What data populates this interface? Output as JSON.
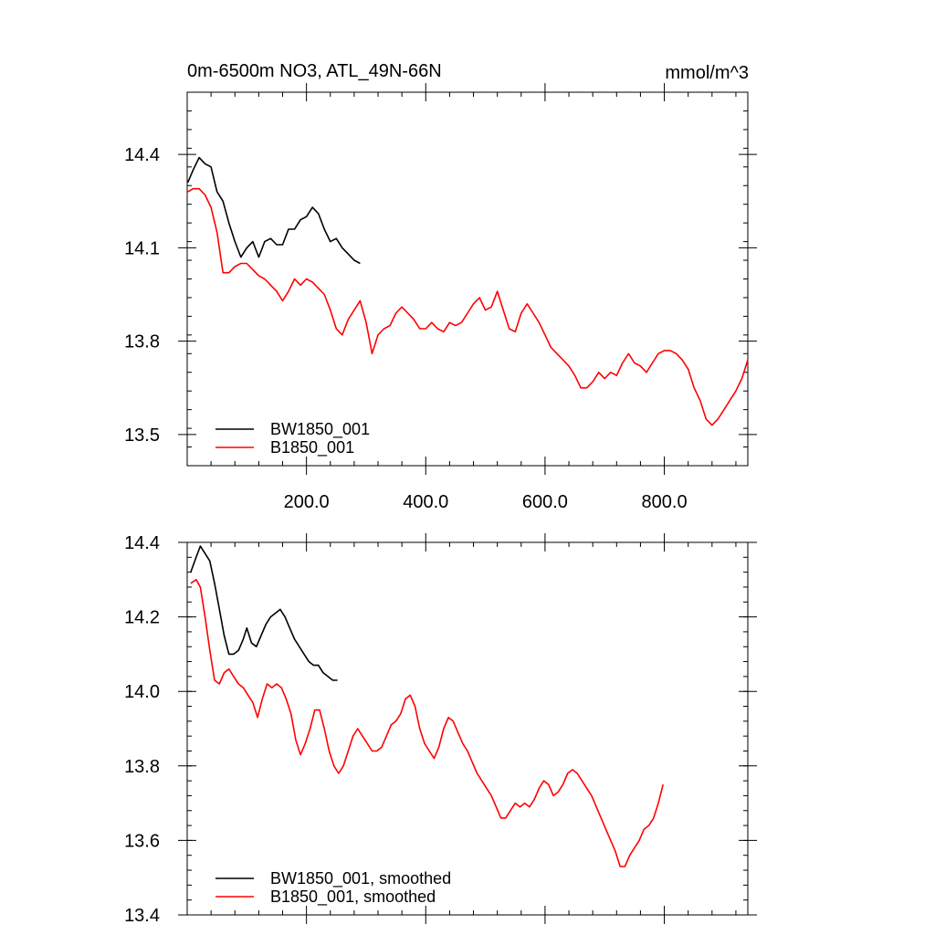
{
  "colors": {
    "BW1850_001": "#000000",
    "B1850_001": "#ff0000"
  },
  "chart_data": [
    {
      "type": "line",
      "title": "0m-6500m NO3, ATL_49N-66N",
      "unit_label": "mmol/m^3",
      "xlim": [
        0,
        940
      ],
      "ylim": [
        13.4,
        14.6
      ],
      "x_ticks": [
        200,
        400,
        600,
        800
      ],
      "x_tick_labels": [
        "200.0",
        "400.0",
        "600.0",
        "800.0"
      ],
      "y_ticks": [
        13.5,
        13.8,
        14.1,
        14.4
      ],
      "y_tick_labels": [
        "13.5",
        "13.8",
        "14.1",
        "14.4"
      ],
      "legend": "bottom-left",
      "series": [
        {
          "name": "BW1850_001",
          "color": "#000000",
          "points": [
            [
              1,
              14.31
            ],
            [
              10,
              14.35
            ],
            [
              20,
              14.39
            ],
            [
              30,
              14.37
            ],
            [
              40,
              14.36
            ],
            [
              50,
              14.28
            ],
            [
              60,
              14.25
            ],
            [
              70,
              14.18
            ],
            [
              80,
              14.12
            ],
            [
              90,
              14.07
            ],
            [
              100,
              14.1
            ],
            [
              110,
              14.12
            ],
            [
              120,
              14.07
            ],
            [
              130,
              14.12
            ],
            [
              140,
              14.13
            ],
            [
              150,
              14.11
            ],
            [
              160,
              14.11
            ],
            [
              170,
              14.16
            ],
            [
              180,
              14.16
            ],
            [
              190,
              14.19
            ],
            [
              200,
              14.2
            ],
            [
              210,
              14.23
            ],
            [
              220,
              14.21
            ],
            [
              230,
              14.16
            ],
            [
              240,
              14.12
            ],
            [
              250,
              14.13
            ],
            [
              260,
              14.1
            ],
            [
              270,
              14.08
            ],
            [
              280,
              14.06
            ],
            [
              290,
              14.05
            ]
          ]
        },
        {
          "name": "B1850_001",
          "color": "#ff0000",
          "points": [
            [
              1,
              14.28
            ],
            [
              10,
              14.29
            ],
            [
              20,
              14.29
            ],
            [
              30,
              14.27
            ],
            [
              40,
              14.23
            ],
            [
              50,
              14.15
            ],
            [
              60,
              14.02
            ],
            [
              70,
              14.02
            ],
            [
              80,
              14.04
            ],
            [
              90,
              14.05
            ],
            [
              100,
              14.05
            ],
            [
              110,
              14.03
            ],
            [
              120,
              14.01
            ],
            [
              130,
              14.0
            ],
            [
              140,
              13.98
            ],
            [
              150,
              13.96
            ],
            [
              160,
              13.93
            ],
            [
              170,
              13.96
            ],
            [
              180,
              14.0
            ],
            [
              190,
              13.98
            ],
            [
              200,
              14.0
            ],
            [
              210,
              13.99
            ],
            [
              220,
              13.97
            ],
            [
              230,
              13.95
            ],
            [
              240,
              13.9
            ],
            [
              250,
              13.84
            ],
            [
              260,
              13.82
            ],
            [
              270,
              13.87
            ],
            [
              280,
              13.9
            ],
            [
              290,
              13.93
            ],
            [
              300,
              13.86
            ],
            [
              310,
              13.76
            ],
            [
              320,
              13.82
            ],
            [
              330,
              13.84
            ],
            [
              340,
              13.85
            ],
            [
              350,
              13.89
            ],
            [
              360,
              13.91
            ],
            [
              370,
              13.89
            ],
            [
              380,
              13.87
            ],
            [
              390,
              13.84
            ],
            [
              400,
              13.84
            ],
            [
              410,
              13.86
            ],
            [
              420,
              13.84
            ],
            [
              430,
              13.83
            ],
            [
              440,
              13.86
            ],
            [
              450,
              13.85
            ],
            [
              460,
              13.86
            ],
            [
              470,
              13.89
            ],
            [
              480,
              13.92
            ],
            [
              490,
              13.94
            ],
            [
              500,
              13.9
            ],
            [
              510,
              13.91
            ],
            [
              520,
              13.96
            ],
            [
              530,
              13.9
            ],
            [
              540,
              13.84
            ],
            [
              550,
              13.83
            ],
            [
              560,
              13.89
            ],
            [
              570,
              13.92
            ],
            [
              580,
              13.89
            ],
            [
              590,
              13.86
            ],
            [
              600,
              13.82
            ],
            [
              610,
              13.78
            ],
            [
              620,
              13.76
            ],
            [
              630,
              13.74
            ],
            [
              640,
              13.72
            ],
            [
              650,
              13.69
            ],
            [
              660,
              13.65
            ],
            [
              670,
              13.65
            ],
            [
              680,
              13.67
            ],
            [
              690,
              13.7
            ],
            [
              700,
              13.68
            ],
            [
              710,
              13.7
            ],
            [
              720,
              13.69
            ],
            [
              730,
              13.73
            ],
            [
              740,
              13.76
            ],
            [
              750,
              13.73
            ],
            [
              760,
              13.72
            ],
            [
              770,
              13.7
            ],
            [
              780,
              13.73
            ],
            [
              790,
              13.76
            ],
            [
              800,
              13.77
            ],
            [
              810,
              13.77
            ],
            [
              820,
              13.76
            ],
            [
              830,
              13.74
            ],
            [
              840,
              13.71
            ],
            [
              850,
              13.65
            ],
            [
              860,
              13.61
            ],
            [
              870,
              13.55
            ],
            [
              880,
              13.53
            ],
            [
              890,
              13.55
            ],
            [
              900,
              13.58
            ],
            [
              910,
              13.61
            ],
            [
              920,
              13.64
            ],
            [
              930,
              13.68
            ],
            [
              940,
              13.74
            ]
          ]
        }
      ]
    },
    {
      "type": "line",
      "xlim": [
        0,
        940
      ],
      "ylim": [
        13.4,
        14.4
      ],
      "x_ticks": [
        200,
        400,
        600,
        800
      ],
      "y_ticks": [
        13.4,
        13.6,
        13.8,
        14.0,
        14.2,
        14.4
      ],
      "y_tick_labels": [
        "13.4",
        "13.6",
        "13.8",
        "14.0",
        "14.2",
        "14.4"
      ],
      "legend": "bottom-left",
      "series": [
        {
          "name": "BW1850_001, smoothed",
          "color": "#000000",
          "points": [
            [
              6,
              14.32
            ],
            [
              15,
              14.36
            ],
            [
              22,
              14.39
            ],
            [
              30,
              14.37
            ],
            [
              38,
              14.35
            ],
            [
              46,
              14.29
            ],
            [
              54,
              14.22
            ],
            [
              62,
              14.15
            ],
            [
              70,
              14.1
            ],
            [
              78,
              14.1
            ],
            [
              86,
              14.11
            ],
            [
              94,
              14.14
            ],
            [
              100,
              14.17
            ],
            [
              108,
              14.13
            ],
            [
              116,
              14.12
            ],
            [
              124,
              14.15
            ],
            [
              132,
              14.18
            ],
            [
              140,
              14.2
            ],
            [
              148,
              14.21
            ],
            [
              156,
              14.22
            ],
            [
              164,
              14.2
            ],
            [
              172,
              14.17
            ],
            [
              180,
              14.14
            ],
            [
              188,
              14.12
            ],
            [
              196,
              14.1
            ],
            [
              204,
              14.08
            ],
            [
              212,
              14.07
            ],
            [
              220,
              14.07
            ],
            [
              228,
              14.05
            ],
            [
              236,
              14.04
            ],
            [
              244,
              14.03
            ],
            [
              252,
              14.03
            ]
          ]
        },
        {
          "name": "B1850_001, smoothed",
          "color": "#ff0000",
          "points": [
            [
              6,
              14.29
            ],
            [
              15,
              14.3
            ],
            [
              22,
              14.28
            ],
            [
              30,
              14.2
            ],
            [
              38,
              14.11
            ],
            [
              46,
              14.03
            ],
            [
              54,
              14.02
            ],
            [
              62,
              14.05
            ],
            [
              70,
              14.06
            ],
            [
              78,
              14.04
            ],
            [
              86,
              14.02
            ],
            [
              94,
              14.01
            ],
            [
              102,
              13.99
            ],
            [
              110,
              13.97
            ],
            [
              118,
              13.93
            ],
            [
              126,
              13.98
            ],
            [
              134,
              14.02
            ],
            [
              142,
              14.01
            ],
            [
              150,
              14.02
            ],
            [
              158,
              14.01
            ],
            [
              166,
              13.98
            ],
            [
              174,
              13.94
            ],
            [
              182,
              13.87
            ],
            [
              190,
              13.83
            ],
            [
              198,
              13.86
            ],
            [
              206,
              13.9
            ],
            [
              214,
              13.95
            ],
            [
              222,
              13.95
            ],
            [
              230,
              13.9
            ],
            [
              238,
              13.84
            ],
            [
              246,
              13.8
            ],
            [
              254,
              13.78
            ],
            [
              262,
              13.8
            ],
            [
              270,
              13.84
            ],
            [
              278,
              13.88
            ],
            [
              286,
              13.9
            ],
            [
              294,
              13.88
            ],
            [
              302,
              13.86
            ],
            [
              310,
              13.84
            ],
            [
              318,
              13.84
            ],
            [
              326,
              13.85
            ],
            [
              334,
              13.88
            ],
            [
              342,
              13.91
            ],
            [
              350,
              13.92
            ],
            [
              358,
              13.94
            ],
            [
              366,
              13.98
            ],
            [
              374,
              13.99
            ],
            [
              382,
              13.96
            ],
            [
              390,
              13.9
            ],
            [
              398,
              13.86
            ],
            [
              406,
              13.84
            ],
            [
              414,
              13.82
            ],
            [
              422,
              13.85
            ],
            [
              430,
              13.9
            ],
            [
              438,
              13.93
            ],
            [
              446,
              13.92
            ],
            [
              454,
              13.89
            ],
            [
              462,
              13.86
            ],
            [
              470,
              13.84
            ],
            [
              478,
              13.81
            ],
            [
              486,
              13.78
            ],
            [
              494,
              13.76
            ],
            [
              502,
              13.74
            ],
            [
              510,
              13.72
            ],
            [
              518,
              13.69
            ],
            [
              526,
              13.66
            ],
            [
              534,
              13.66
            ],
            [
              542,
              13.68
            ],
            [
              550,
              13.7
            ],
            [
              558,
              13.69
            ],
            [
              566,
              13.7
            ],
            [
              574,
              13.69
            ],
            [
              582,
              13.71
            ],
            [
              590,
              13.74
            ],
            [
              598,
              13.76
            ],
            [
              606,
              13.75
            ],
            [
              614,
              13.72
            ],
            [
              622,
              13.73
            ],
            [
              630,
              13.75
            ],
            [
              638,
              13.78
            ],
            [
              646,
              13.79
            ],
            [
              654,
              13.78
            ],
            [
              662,
              13.76
            ],
            [
              670,
              13.74
            ],
            [
              678,
              13.72
            ],
            [
              686,
              13.69
            ],
            [
              694,
              13.66
            ],
            [
              702,
              13.63
            ],
            [
              710,
              13.6
            ],
            [
              718,
              13.57
            ],
            [
              726,
              13.53
            ],
            [
              734,
              13.53
            ],
            [
              742,
              13.56
            ],
            [
              750,
              13.58
            ],
            [
              758,
              13.6
            ],
            [
              766,
              13.63
            ],
            [
              774,
              13.64
            ],
            [
              782,
              13.66
            ],
            [
              790,
              13.7
            ],
            [
              798,
              13.75
            ]
          ]
        }
      ]
    }
  ]
}
